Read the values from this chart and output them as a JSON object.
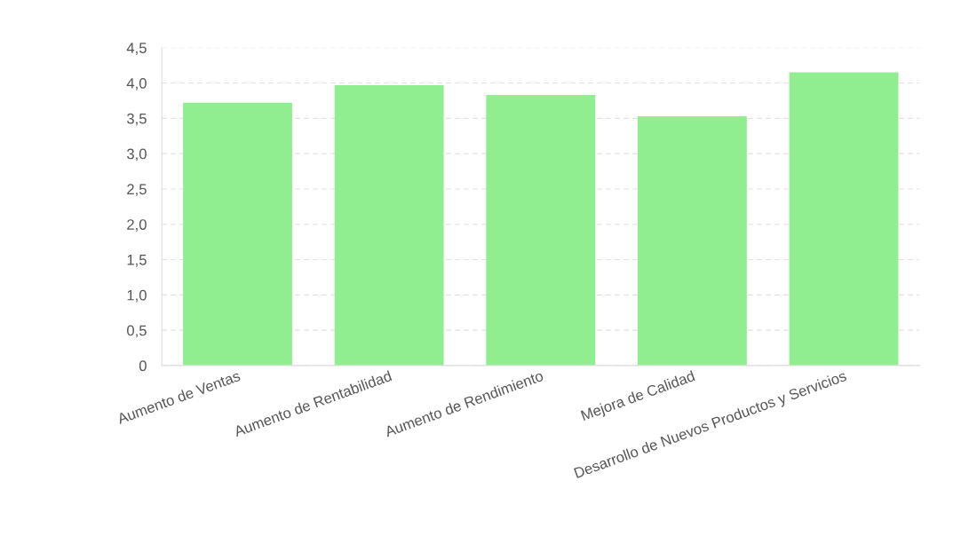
{
  "chart_data": {
    "type": "bar",
    "categories": [
      "Aumento de Ventas",
      "Aumento de Rentabilidad",
      "Aumento de Rendimiento",
      "Mejora de Calidad",
      "Desarrollo de Nuevos Productos y Servicios"
    ],
    "values": [
      3.72,
      3.97,
      3.83,
      3.53,
      4.15
    ],
    "color": "#90ee90",
    "ylim": [
      0,
      4.5
    ],
    "yticks": [
      0,
      {
        "value": 0.5,
        "label": "0,5"
      },
      {
        "value": 1,
        "label": "1,0"
      },
      {
        "value": 1.5,
        "label": "1,5"
      },
      {
        "value": 2,
        "label": "2,0"
      },
      {
        "value": 2.5,
        "label": "2,5"
      },
      {
        "value": 3,
        "label": "3,0"
      },
      {
        "value": 3.5,
        "label": "3,5"
      },
      {
        "value": 4,
        "label": "4,0"
      },
      {
        "value": 4.5,
        "label": "4,5"
      }
    ],
    "grid": "y"
  }
}
